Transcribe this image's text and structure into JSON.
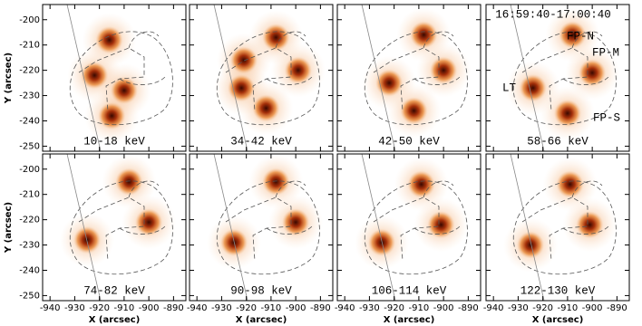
{
  "chart_data": [
    {
      "type": "image",
      "label": "10-18 keV",
      "ylabel": "Y (arcsec)",
      "xlim": [
        -943,
        -885
      ],
      "ylim": [
        -252,
        -194
      ],
      "xticks": [
        -940,
        -930,
        -920,
        -910,
        -900,
        -890
      ],
      "yticks": [
        -200,
        -210,
        -220,
        -230,
        -240,
        -250
      ],
      "color": "#c0460a",
      "x": [
        -922,
        -916,
        -910,
        -915
      ],
      "y": [
        -222,
        -208,
        -228,
        -238
      ]
    },
    {
      "type": "image",
      "label": "34-42 keV",
      "xlim": [
        -943,
        -885
      ],
      "ylim": [
        -252,
        -194
      ],
      "xticks": [
        -940,
        -930,
        -920,
        -910,
        -900,
        -890
      ],
      "yticks": [
        -200,
        -210,
        -220,
        -230,
        -240,
        -250
      ],
      "color": "#c0460a",
      "x": [
        -922,
        -921,
        -908,
        -899,
        -912
      ],
      "y": [
        -227,
        -216,
        -207,
        -220,
        -235
      ]
    },
    {
      "type": "image",
      "label": "42-50 keV",
      "xlim": [
        -943,
        -885
      ],
      "ylim": [
        -252,
        -194
      ],
      "xticks": [
        -940,
        -930,
        -920,
        -910,
        -900,
        -890
      ],
      "yticks": [
        -200,
        -210,
        -220,
        -230,
        -240,
        -250
      ],
      "color": "#c0460a",
      "x": [
        -922,
        -908,
        -900,
        -912
      ],
      "y": [
        -225,
        -206,
        -220,
        -236
      ]
    },
    {
      "type": "image",
      "label": "58-66 keV",
      "annotations": [
        "16:59:40-17:00:40",
        "FP-N",
        "FP-M",
        "LT",
        "FP-S"
      ],
      "xlim": [
        -943,
        -885
      ],
      "ylim": [
        -252,
        -194
      ],
      "xticks": [
        -940,
        -930,
        -920,
        -910,
        -900,
        -890
      ],
      "yticks": [
        -200,
        -210,
        -220,
        -230,
        -240,
        -250
      ],
      "color": "#c0460a",
      "x": [
        -924,
        -908,
        -900,
        -910
      ],
      "y": [
        -227,
        -206,
        -221,
        -237
      ]
    },
    {
      "type": "image",
      "label": "74-82 keV",
      "ylabel": "Y (arcsec)",
      "xlabel": "X (arcsec)",
      "xlim": [
        -943,
        -885
      ],
      "ylim": [
        -252,
        -194
      ],
      "xticks": [
        -940,
        -930,
        -920,
        -910,
        -900,
        -890
      ],
      "yticks": [
        -200,
        -210,
        -220,
        -230,
        -240,
        -250
      ],
      "color": "#c0460a",
      "x": [
        -925,
        -908,
        -900
      ],
      "y": [
        -228,
        -205,
        -221
      ]
    },
    {
      "type": "image",
      "label": "90-98 keV",
      "xlabel": "X (arcsec)",
      "xlim": [
        -943,
        -885
      ],
      "ylim": [
        -252,
        -194
      ],
      "xticks": [
        -940,
        -930,
        -920,
        -910,
        -900,
        -890
      ],
      "yticks": [
        -200,
        -210,
        -220,
        -230,
        -240,
        -250
      ],
      "color": "#c0460a",
      "x": [
        -925,
        -908,
        -900
      ],
      "y": [
        -229,
        -205,
        -221
      ]
    },
    {
      "type": "image",
      "label": "106-114 keV",
      "xlabel": "X (arcsec)",
      "xlim": [
        -943,
        -885
      ],
      "ylim": [
        -252,
        -194
      ],
      "xticks": [
        -940,
        -930,
        -920,
        -910,
        -900,
        -890
      ],
      "yticks": [
        -200,
        -210,
        -220,
        -230,
        -240,
        -250
      ],
      "color": "#c0460a",
      "x": [
        -925,
        -909,
        -901
      ],
      "y": [
        -229,
        -206,
        -222
      ]
    },
    {
      "type": "image",
      "label": "122-130 keV",
      "xlabel": "X (arcsec)",
      "xlim": [
        -943,
        -885
      ],
      "ylim": [
        -252,
        -194
      ],
      "xticks": [
        -940,
        -930,
        -920,
        -910,
        -900,
        -890
      ],
      "yticks": [
        -200,
        -210,
        -220,
        -230,
        -240,
        -250
      ],
      "color": "#c0460a",
      "x": [
        -925,
        -909,
        -901
      ],
      "y": [
        -230,
        -206,
        -222
      ]
    }
  ]
}
